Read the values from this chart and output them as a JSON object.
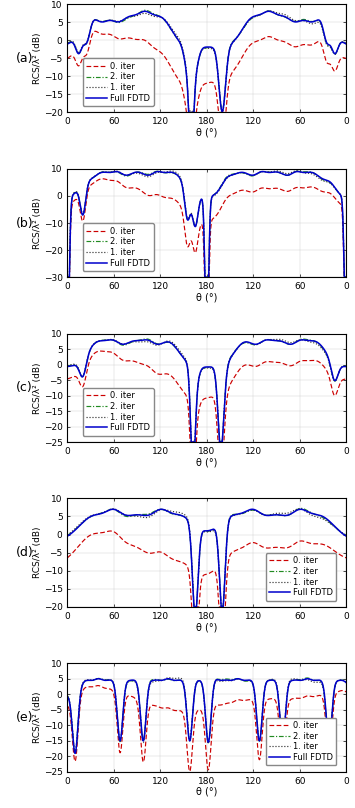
{
  "subplots": [
    {
      "label": "(a)",
      "ylim": [
        -20,
        10
      ],
      "yticks": [
        -20,
        -15,
        -10,
        -5,
        0,
        5,
        10
      ]
    },
    {
      "label": "(b)",
      "ylim": [
        -30,
        10
      ],
      "yticks": [
        -30,
        -20,
        -10,
        0,
        10
      ]
    },
    {
      "label": "(c)",
      "ylim": [
        -25,
        10
      ],
      "yticks": [
        -25,
        -20,
        -15,
        -10,
        -5,
        0,
        5,
        10
      ]
    },
    {
      "label": "(d)",
      "ylim": [
        -20,
        10
      ],
      "yticks": [
        -20,
        -15,
        -10,
        -5,
        0,
        5,
        10
      ]
    },
    {
      "label": "(e)",
      "ylim": [
        -25,
        10
      ],
      "yticks": [
        -25,
        -20,
        -15,
        -10,
        -5,
        0,
        5,
        10
      ]
    }
  ],
  "colors": {
    "full_fdtd": "#0000CC",
    "iter0": "#CC0000",
    "iter1": "#333333",
    "iter2": "#228B22"
  },
  "xtick_labels": [
    "0",
    "60",
    "120",
    "180",
    "120",
    "60",
    "0"
  ],
  "xtick_positions": [
    0,
    60,
    120,
    180,
    240,
    300,
    360
  ],
  "xlabel": "θ (°)",
  "ylabel": "RCS/λ² (dB)"
}
